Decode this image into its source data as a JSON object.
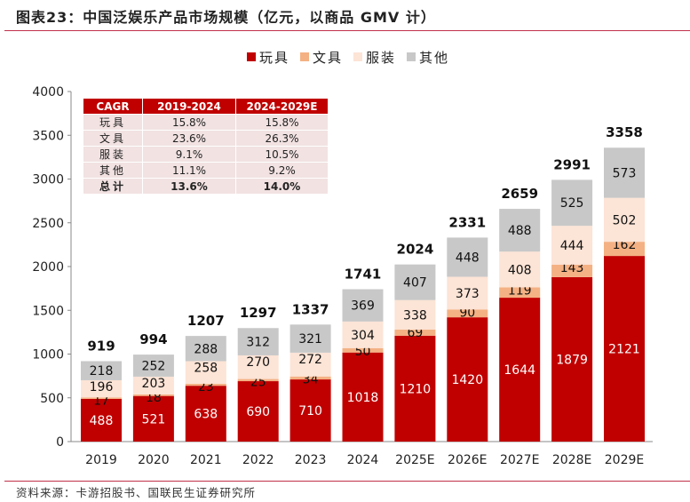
{
  "title": "图表23：中国泛娱乐产品市场规模（亿元，以商品 GMV 计）",
  "source": "资料来源：卡游招股书、国联民生证券研究所",
  "chart_data": {
    "type": "bar",
    "stacked": true,
    "categories": [
      "2019",
      "2020",
      "2021",
      "2022",
      "2023",
      "2024",
      "2025E",
      "2026E",
      "2027E",
      "2028E",
      "2029E"
    ],
    "series": [
      {
        "name": "玩具",
        "color": "#c00000",
        "values": [
          488,
          521,
          638,
          690,
          710,
          1018,
          1210,
          1420,
          1644,
          1879,
          2121
        ]
      },
      {
        "name": "文具",
        "color": "#f4b183",
        "values": [
          17,
          18,
          23,
          25,
          34,
          50,
          69,
          90,
          119,
          143,
          162
        ]
      },
      {
        "name": "服装",
        "color": "#fce4d6",
        "values": [
          196,
          203,
          258,
          270,
          272,
          304,
          338,
          373,
          408,
          444,
          502
        ]
      },
      {
        "name": "其他",
        "color": "#c8c8c8",
        "values": [
          218,
          252,
          288,
          312,
          321,
          369,
          407,
          448,
          488,
          525,
          573
        ]
      }
    ],
    "totals": [
      919,
      994,
      1207,
      1297,
      1337,
      1741,
      2024,
      2331,
      2659,
      2991,
      3358
    ],
    "ylim": [
      0,
      4000
    ],
    "yticks": [
      0,
      500,
      1000,
      1500,
      2000,
      2500,
      3000,
      3500,
      4000
    ],
    "legend": "top-center",
    "grid": false
  },
  "cagr_table": {
    "header": [
      "CAGR",
      "2019-2024",
      "2024-2029E"
    ],
    "rows": [
      [
        "玩具",
        "15.8%",
        "15.8%"
      ],
      [
        "文具",
        "23.6%",
        "26.3%"
      ],
      [
        "服装",
        "9.1%",
        "10.5%"
      ],
      [
        "其他",
        "11.1%",
        "9.2%"
      ],
      [
        "总计",
        "13.6%",
        "14.0%"
      ]
    ]
  }
}
